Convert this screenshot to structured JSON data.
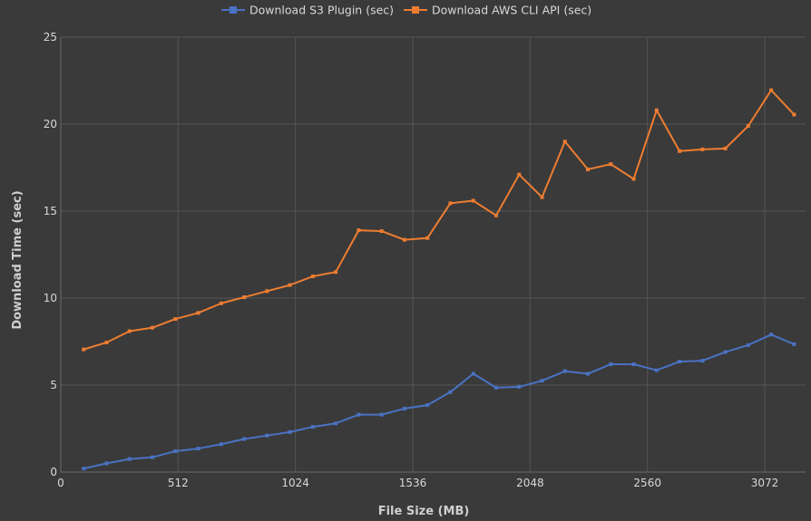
{
  "chart_data": {
    "type": "line",
    "title": "",
    "xlabel": "File Size (MB)",
    "ylabel": "Download Time (sec)",
    "xlim": [
      0,
      3250
    ],
    "ylim": [
      0,
      25
    ],
    "x_ticks": [
      0,
      512,
      1024,
      1536,
      2048,
      2560,
      3072
    ],
    "y_ticks": [
      0,
      5,
      10,
      15,
      20,
      25
    ],
    "grid": true,
    "legend_position": "top",
    "x": [
      100,
      200,
      300,
      400,
      500,
      600,
      700,
      800,
      900,
      1000,
      1100,
      1200,
      1300,
      1400,
      1500,
      1600,
      1700,
      1800,
      1900,
      2000,
      2100,
      2200,
      2300,
      2400,
      2500,
      2600,
      2700,
      2800,
      2900,
      3000,
      3100,
      3200
    ],
    "series": [
      {
        "name": "Download S3 Plugin (sec)",
        "color": "#4a72c4",
        "marker": "square",
        "values": [
          0.2,
          0.5,
          0.75,
          0.85,
          1.2,
          1.35,
          1.6,
          1.9,
          2.1,
          2.3,
          2.6,
          2.8,
          3.3,
          3.3,
          3.65,
          3.85,
          4.6,
          5.65,
          4.85,
          4.9,
          5.25,
          5.8,
          5.65,
          6.2,
          6.2,
          5.85,
          6.35,
          6.4,
          6.9,
          7.3,
          7.9,
          7.35
        ]
      },
      {
        "name": "Download AWS CLI API (sec)",
        "color": "#ee7d31",
        "marker": "square",
        "values": [
          7.05,
          7.45,
          8.1,
          8.3,
          8.8,
          9.15,
          9.7,
          10.05,
          10.4,
          10.75,
          11.25,
          11.5,
          13.9,
          13.85,
          13.35,
          13.45,
          15.45,
          15.6,
          14.75,
          17.1,
          15.8,
          19.0,
          17.4,
          17.7,
          16.85,
          20.8,
          18.45,
          18.55,
          18.6,
          19.9,
          21.95,
          20.55
        ]
      }
    ]
  }
}
